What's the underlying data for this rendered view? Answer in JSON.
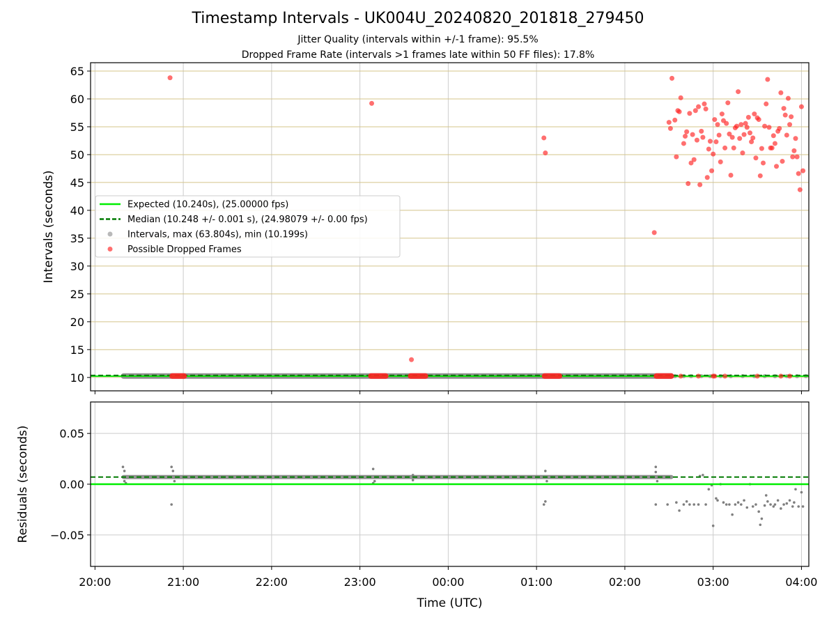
{
  "figure": {
    "title": "Timestamp Intervals - UK004U_20240820_201818_279450",
    "subtitle_1": "Jitter Quality (intervals within +/-1 frame): 95.5%",
    "subtitle_2": "Dropped Frame Rate (intervals >1 frames late within 50 FF files): 17.8%"
  },
  "colors": {
    "expected": "#00ee00",
    "median": "#007a00",
    "intervals": "#7f7f7f",
    "dropped": "#ff2222",
    "hgrid_top": "#d4c48a",
    "grid": "#cccccc"
  },
  "chart_data": [
    {
      "type": "scatter",
      "ylabel": "Intervals (seconds)",
      "ylim": [
        7.6,
        66.5
      ],
      "yticks": [
        10,
        15,
        20,
        25,
        30,
        35,
        40,
        45,
        50,
        55,
        60,
        65
      ],
      "ytick_labels": [
        "10",
        "15",
        "20",
        "25",
        "30",
        "35",
        "40",
        "45",
        "50",
        "55",
        "60",
        "65"
      ],
      "grid": true,
      "legend_position": "center-left",
      "expected_line": {
        "name": "Expected (10.240s), (25.00000 fps)",
        "y": 10.24
      },
      "median_line": {
        "name": "Median (10.248 +/- 0.001 s), (24.98079 +/- 0.00 fps)",
        "y": 10.248
      },
      "series": [
        {
          "name": "Intervals, max (63.804s), min (10.199s)",
          "style": "band",
          "y": 10.25,
          "x_range": [
            "20:19",
            "02:32"
          ],
          "sparse_points": [
            [
              "02:34",
              10.22
            ],
            [
              "02:40",
              10.24
            ],
            [
              "02:45",
              10.22
            ],
            [
              "02:52",
              10.24
            ],
            [
              "02:58",
              10.23
            ],
            [
              "03:05",
              10.24
            ],
            [
              "03:12",
              10.22
            ],
            [
              "03:20",
              10.24
            ],
            [
              "03:28",
              10.23
            ],
            [
              "03:35",
              10.24
            ],
            [
              "03:42",
              10.22
            ],
            [
              "03:50",
              10.24
            ],
            [
              "03:57",
              10.23
            ],
            [
              "04:03",
              10.24
            ]
          ]
        },
        {
          "name": "Possible Dropped Frames",
          "clusters": [
            {
              "x_range": [
                "20:52",
                "21:01"
              ],
              "y": 10.25
            },
            {
              "x_range": [
                "23:07",
                "23:18"
              ],
              "y": 10.25
            },
            {
              "x_range": [
                "23:34",
                "23:45"
              ],
              "y": 10.25
            },
            {
              "x_range": [
                "01:05",
                "01:16"
              ],
              "y": 10.25
            },
            {
              "x_range": [
                "02:21",
                "02:32"
              ],
              "y": 10.25
            }
          ],
          "points": [
            [
              "20:51",
              63.8
            ],
            [
              "23:08",
              59.2
            ],
            [
              "23:35",
              13.2
            ],
            [
              "01:05",
              53.0
            ],
            [
              "01:06",
              50.3
            ],
            [
              "02:20",
              36.0
            ],
            [
              "02:30",
              55.8
            ],
            [
              "02:31",
              54.7
            ],
            [
              "02:32",
              63.7
            ],
            [
              "02:34",
              56.2
            ],
            [
              "02:35",
              49.6
            ],
            [
              "02:36",
              57.9
            ],
            [
              "02:37",
              57.7
            ],
            [
              "02:38",
              60.2
            ],
            [
              "02:40",
              52.0
            ],
            [
              "02:41",
              53.3
            ],
            [
              "02:42",
              54.1
            ],
            [
              "02:43",
              44.8
            ],
            [
              "02:44",
              57.4
            ],
            [
              "02:45",
              48.5
            ],
            [
              "02:46",
              53.6
            ],
            [
              "02:47",
              49.1
            ],
            [
              "02:48",
              57.9
            ],
            [
              "02:49",
              52.6
            ],
            [
              "02:50",
              58.6
            ],
            [
              "02:51",
              44.6
            ],
            [
              "02:52",
              54.2
            ],
            [
              "02:53",
              53.1
            ],
            [
              "02:54",
              59.1
            ],
            [
              "02:55",
              58.2
            ],
            [
              "02:56",
              45.9
            ],
            [
              "02:57",
              51.0
            ],
            [
              "02:58",
              52.4
            ],
            [
              "02:59",
              47.1
            ],
            [
              "03:00",
              50.1
            ],
            [
              "03:01",
              56.3
            ],
            [
              "03:02",
              52.3
            ],
            [
              "03:03",
              55.4
            ],
            [
              "03:04",
              53.5
            ],
            [
              "03:05",
              48.7
            ],
            [
              "03:06",
              57.3
            ],
            [
              "03:07",
              56.1
            ],
            [
              "03:08",
              51.2
            ],
            [
              "03:09",
              55.6
            ],
            [
              "03:10",
              59.3
            ],
            [
              "03:11",
              53.7
            ],
            [
              "03:12",
              46.3
            ],
            [
              "03:13",
              53.1
            ],
            [
              "03:14",
              51.2
            ],
            [
              "03:15",
              54.8
            ],
            [
              "03:16",
              55.1
            ],
            [
              "03:17",
              61.3
            ],
            [
              "03:18",
              52.9
            ],
            [
              "03:19",
              55.4
            ],
            [
              "03:20",
              50.3
            ],
            [
              "03:21",
              53.6
            ],
            [
              "03:22",
              55.6
            ],
            [
              "03:23",
              54.9
            ],
            [
              "03:24",
              56.7
            ],
            [
              "03:25",
              53.9
            ],
            [
              "03:26",
              52.3
            ],
            [
              "03:27",
              53.0
            ],
            [
              "03:28",
              57.3
            ],
            [
              "03:29",
              49.4
            ],
            [
              "03:30",
              56.6
            ],
            [
              "03:31",
              56.3
            ],
            [
              "03:32",
              46.2
            ],
            [
              "03:33",
              51.1
            ],
            [
              "03:34",
              48.5
            ],
            [
              "03:35",
              55.1
            ],
            [
              "03:36",
              59.1
            ],
            [
              "03:37",
              63.5
            ],
            [
              "03:38",
              54.9
            ],
            [
              "03:39",
              51.2
            ],
            [
              "03:40",
              51.2
            ],
            [
              "03:41",
              53.4
            ],
            [
              "03:42",
              52.0
            ],
            [
              "03:43",
              47.9
            ],
            [
              "03:44",
              54.2
            ],
            [
              "03:45",
              54.7
            ],
            [
              "03:46",
              61.1
            ],
            [
              "03:47",
              48.8
            ],
            [
              "03:48",
              58.3
            ],
            [
              "03:49",
              57.1
            ],
            [
              "03:50",
              53.5
            ],
            [
              "03:51",
              60.1
            ],
            [
              "03:52",
              55.4
            ],
            [
              "03:53",
              56.8
            ],
            [
              "03:54",
              49.6
            ],
            [
              "03:55",
              50.7
            ],
            [
              "03:56",
              52.9
            ],
            [
              "03:57",
              49.6
            ],
            [
              "03:58",
              46.6
            ],
            [
              "03:59",
              43.7
            ],
            [
              "04:00",
              58.6
            ],
            [
              "04:01",
              47.1
            ],
            [
              "02:38",
              10.24
            ],
            [
              "02:50",
              10.24
            ],
            [
              "03:00",
              10.24
            ],
            [
              "03:01",
              10.24
            ],
            [
              "03:08",
              10.24
            ],
            [
              "03:30",
              10.24
            ],
            [
              "03:46",
              10.24
            ],
            [
              "03:52",
              10.24
            ]
          ]
        }
      ]
    },
    {
      "type": "scatter",
      "ylabel": "Residuals (seconds)",
      "xlabel": "Time (UTC)",
      "ylim": [
        -0.081,
        0.081
      ],
      "yticks": [
        0.05,
        0.0,
        -0.05
      ],
      "ytick_labels": [
        "0.05",
        "0.00",
        "−0.05"
      ],
      "xticks": [
        "20:00",
        "21:00",
        "22:00",
        "23:00",
        "00:00",
        "01:00",
        "02:00",
        "03:00",
        "04:00"
      ],
      "grid": true,
      "expected_line": {
        "y": 0.0
      },
      "median_line": {
        "y": 0.007
      },
      "series": [
        {
          "name": "Residuals",
          "style": "band",
          "y": 0.007,
          "x_range": [
            "20:19",
            "02:32"
          ],
          "outliers": [
            [
              "20:19",
              0.017
            ],
            [
              "20:20",
              0.013
            ],
            [
              "20:20",
              0.003
            ],
            [
              "20:21",
              0.001
            ],
            [
              "20:52",
              0.017
            ],
            [
              "20:53",
              0.013
            ],
            [
              "20:52",
              -0.02
            ],
            [
              "20:54",
              0.003
            ],
            [
              "23:09",
              0.015
            ],
            [
              "23:09",
              0.001
            ],
            [
              "23:10",
              0.003
            ],
            [
              "23:36",
              0.009
            ],
            [
              "23:36",
              0.004
            ],
            [
              "01:06",
              0.013
            ],
            [
              "01:06",
              -0.017
            ],
            [
              "01:05",
              -0.02
            ],
            [
              "01:07",
              0.003
            ],
            [
              "02:21",
              0.017
            ],
            [
              "02:21",
              0.012
            ],
            [
              "02:21",
              -0.02
            ],
            [
              "02:22",
              0.003
            ],
            [
              "02:29",
              -0.02
            ],
            [
              "02:35",
              -0.018
            ],
            [
              "02:37",
              -0.026
            ],
            [
              "02:40",
              -0.02
            ],
            [
              "02:42",
              -0.017
            ],
            [
              "02:44",
              -0.02
            ],
            [
              "02:47",
              -0.02
            ],
            [
              "02:50",
              -0.02
            ],
            [
              "02:51",
              0.008
            ],
            [
              "02:53",
              0.009
            ],
            [
              "02:55",
              -0.02
            ],
            [
              "02:57",
              -0.005
            ],
            [
              "02:59",
              -0.001
            ],
            [
              "03:00",
              -0.041
            ],
            [
              "03:02",
              -0.014
            ],
            [
              "03:03",
              -0.016
            ],
            [
              "03:05",
              0.0
            ],
            [
              "03:07",
              -0.018
            ],
            [
              "03:09",
              -0.02
            ],
            [
              "03:11",
              -0.02
            ],
            [
              "03:13",
              -0.03
            ],
            [
              "03:15",
              -0.02
            ],
            [
              "03:17",
              -0.018
            ],
            [
              "03:19",
              -0.02
            ],
            [
              "03:21",
              -0.016
            ],
            [
              "03:23",
              -0.023
            ],
            [
              "03:25",
              0.0
            ],
            [
              "03:27",
              -0.022
            ],
            [
              "03:29",
              -0.02
            ],
            [
              "03:31",
              -0.027
            ],
            [
              "03:32",
              -0.04
            ],
            [
              "03:33",
              -0.034
            ],
            [
              "03:35",
              -0.021
            ],
            [
              "03:36",
              -0.011
            ],
            [
              "03:37",
              -0.017
            ],
            [
              "03:39",
              -0.02
            ],
            [
              "03:41",
              -0.022
            ],
            [
              "03:42",
              -0.02
            ],
            [
              "03:44",
              -0.016
            ],
            [
              "03:46",
              -0.024
            ],
            [
              "03:48",
              -0.02
            ],
            [
              "03:50",
              -0.019
            ],
            [
              "03:52",
              -0.016
            ],
            [
              "03:54",
              -0.022
            ],
            [
              "03:55",
              -0.018
            ],
            [
              "03:56",
              -0.005
            ],
            [
              "03:58",
              -0.022
            ],
            [
              "04:00",
              -0.008
            ],
            [
              "04:01",
              -0.022
            ]
          ]
        }
      ]
    }
  ]
}
